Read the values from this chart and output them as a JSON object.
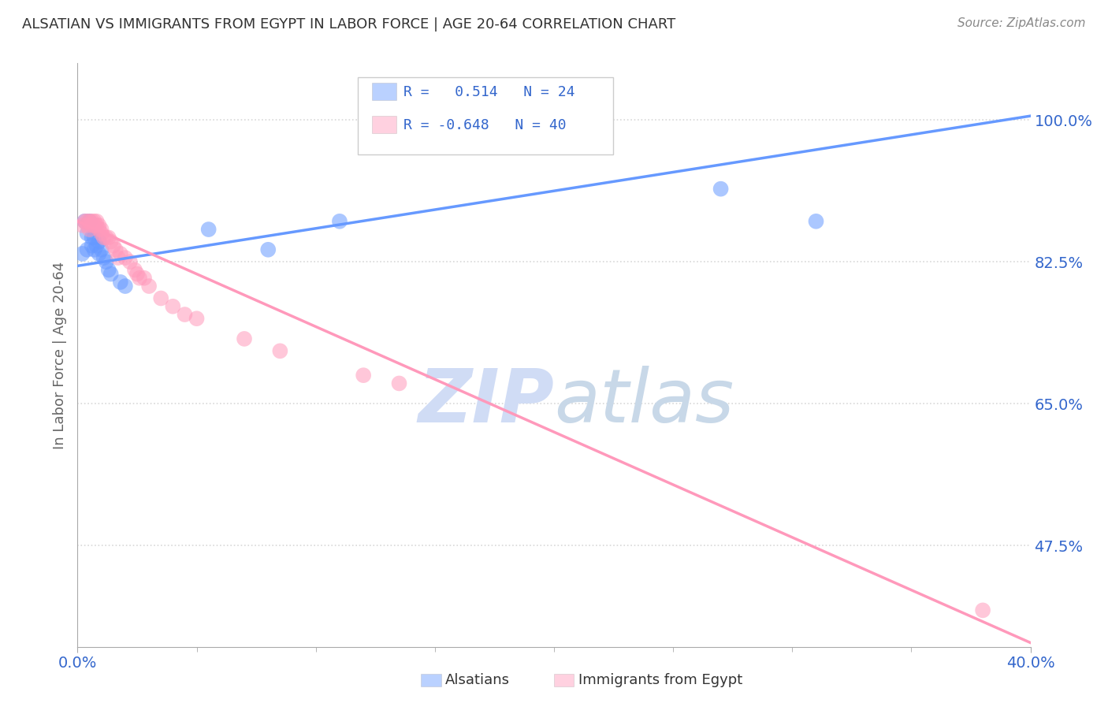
{
  "title": "ALSATIAN VS IMMIGRANTS FROM EGYPT IN LABOR FORCE | AGE 20-64 CORRELATION CHART",
  "source": "Source: ZipAtlas.com",
  "ylabel": "In Labor Force | Age 20-64",
  "xlabel": "",
  "xlim": [
    0.0,
    0.4
  ],
  "ylim": [
    0.35,
    1.07
  ],
  "yticks": [
    0.475,
    0.65,
    0.825,
    1.0
  ],
  "ytick_labels": [
    "47.5%",
    "65.0%",
    "82.5%",
    "100.0%"
  ],
  "xtick_labels": [
    "0.0%",
    "40.0%"
  ],
  "xticks": [
    0.0,
    0.4
  ],
  "background_color": "#ffffff",
  "grid_color": "#d8d8d8",
  "blue_color": "#6699ff",
  "pink_color": "#ff99bb",
  "title_color": "#333333",
  "axis_label_color": "#666666",
  "tick_label_color": "#3366cc",
  "r_blue": 0.514,
  "n_blue": 24,
  "r_pink": -0.648,
  "n_pink": 40,
  "blue_scatter_x": [
    0.002,
    0.003,
    0.004,
    0.004,
    0.005,
    0.006,
    0.006,
    0.007,
    0.007,
    0.008,
    0.009,
    0.009,
    0.01,
    0.011,
    0.012,
    0.013,
    0.014,
    0.018,
    0.02,
    0.055,
    0.08,
    0.11,
    0.27,
    0.31
  ],
  "blue_scatter_y": [
    0.835,
    0.875,
    0.86,
    0.84,
    0.875,
    0.845,
    0.855,
    0.855,
    0.84,
    0.845,
    0.835,
    0.85,
    0.84,
    0.83,
    0.825,
    0.815,
    0.81,
    0.8,
    0.795,
    0.865,
    0.84,
    0.875,
    0.915,
    0.875
  ],
  "pink_scatter_x": [
    0.002,
    0.003,
    0.004,
    0.004,
    0.005,
    0.005,
    0.006,
    0.006,
    0.007,
    0.007,
    0.008,
    0.008,
    0.009,
    0.009,
    0.01,
    0.01,
    0.011,
    0.012,
    0.013,
    0.014,
    0.015,
    0.016,
    0.017,
    0.018,
    0.02,
    0.022,
    0.024,
    0.025,
    0.026,
    0.028,
    0.03,
    0.035,
    0.04,
    0.045,
    0.05,
    0.07,
    0.085,
    0.12,
    0.135,
    0.38
  ],
  "pink_scatter_y": [
    0.87,
    0.875,
    0.875,
    0.87,
    0.865,
    0.875,
    0.87,
    0.875,
    0.87,
    0.875,
    0.87,
    0.875,
    0.865,
    0.87,
    0.86,
    0.865,
    0.855,
    0.855,
    0.855,
    0.85,
    0.845,
    0.84,
    0.83,
    0.835,
    0.83,
    0.825,
    0.815,
    0.81,
    0.805,
    0.805,
    0.795,
    0.78,
    0.77,
    0.76,
    0.755,
    0.73,
    0.715,
    0.685,
    0.675,
    0.395
  ],
  "blue_line_x": [
    0.0,
    0.4
  ],
  "blue_line_y": [
    0.82,
    1.005
  ],
  "pink_line_x": [
    0.0,
    0.4
  ],
  "pink_line_y": [
    0.875,
    0.355
  ],
  "watermark_zip": "ZIP",
  "watermark_atlas": "atlas",
  "watermark_color_zip": "#d0dcf5",
  "watermark_color_atlas": "#c8d8e8",
  "legend_r_color": "#3366cc",
  "legend_bg_color": "#ffffff",
  "legend_border_color": "#cccccc"
}
